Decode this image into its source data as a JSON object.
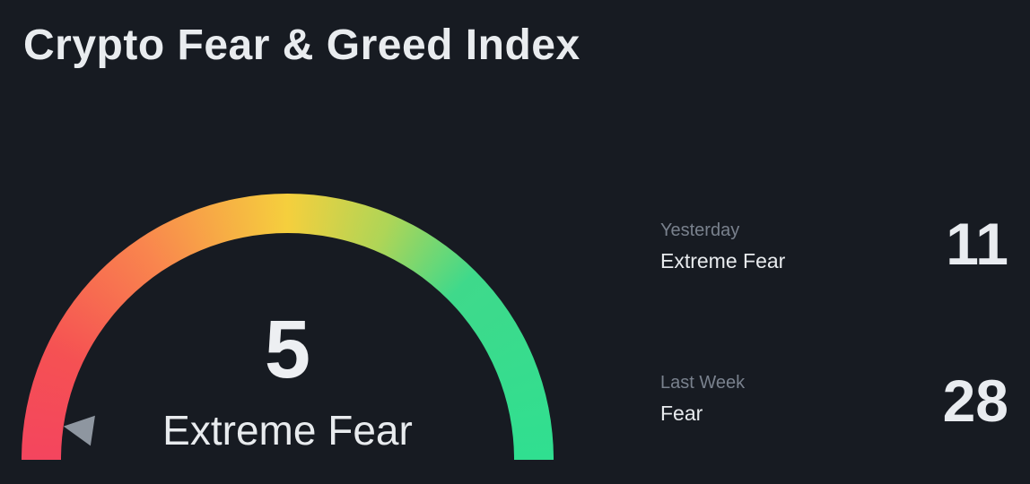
{
  "title": "Crypto Fear & Greed Index",
  "gauge": {
    "value": "5",
    "classification": "Extreme Fear"
  },
  "history": [
    {
      "period": "Yesterday",
      "classification": "Extreme Fear",
      "value": "11"
    },
    {
      "period": "Last Week",
      "classification": "Fear",
      "value": "28"
    }
  ],
  "colors": {
    "background": "#171b22",
    "text_primary": "#e9ecef",
    "text_muted": "#79818d",
    "needle": "#8e96a0",
    "scale_red": "#f4455e",
    "scale_orange": "#f9854e",
    "scale_yellow": "#f5cf3d",
    "scale_yellow_green": "#aed557",
    "scale_green": "#3fd98b",
    "scale_mint": "#30df90"
  },
  "chart_data": {
    "type": "gauge",
    "title": "Crypto Fear & Greed Index",
    "value": 5,
    "value_label": "Extreme Fear",
    "range": [
      0,
      100
    ],
    "arc_span_degrees": 180,
    "scale_gradient": [
      "#f4455e",
      "#f9854e",
      "#f5cf3d",
      "#aed557",
      "#3fd98b",
      "#30df90"
    ],
    "needle_color": "#8e96a0",
    "history": [
      {
        "period": "Yesterday",
        "classification": "Extreme Fear",
        "value": 11
      },
      {
        "period": "Last Week",
        "classification": "Fear",
        "value": 28
      }
    ]
  }
}
